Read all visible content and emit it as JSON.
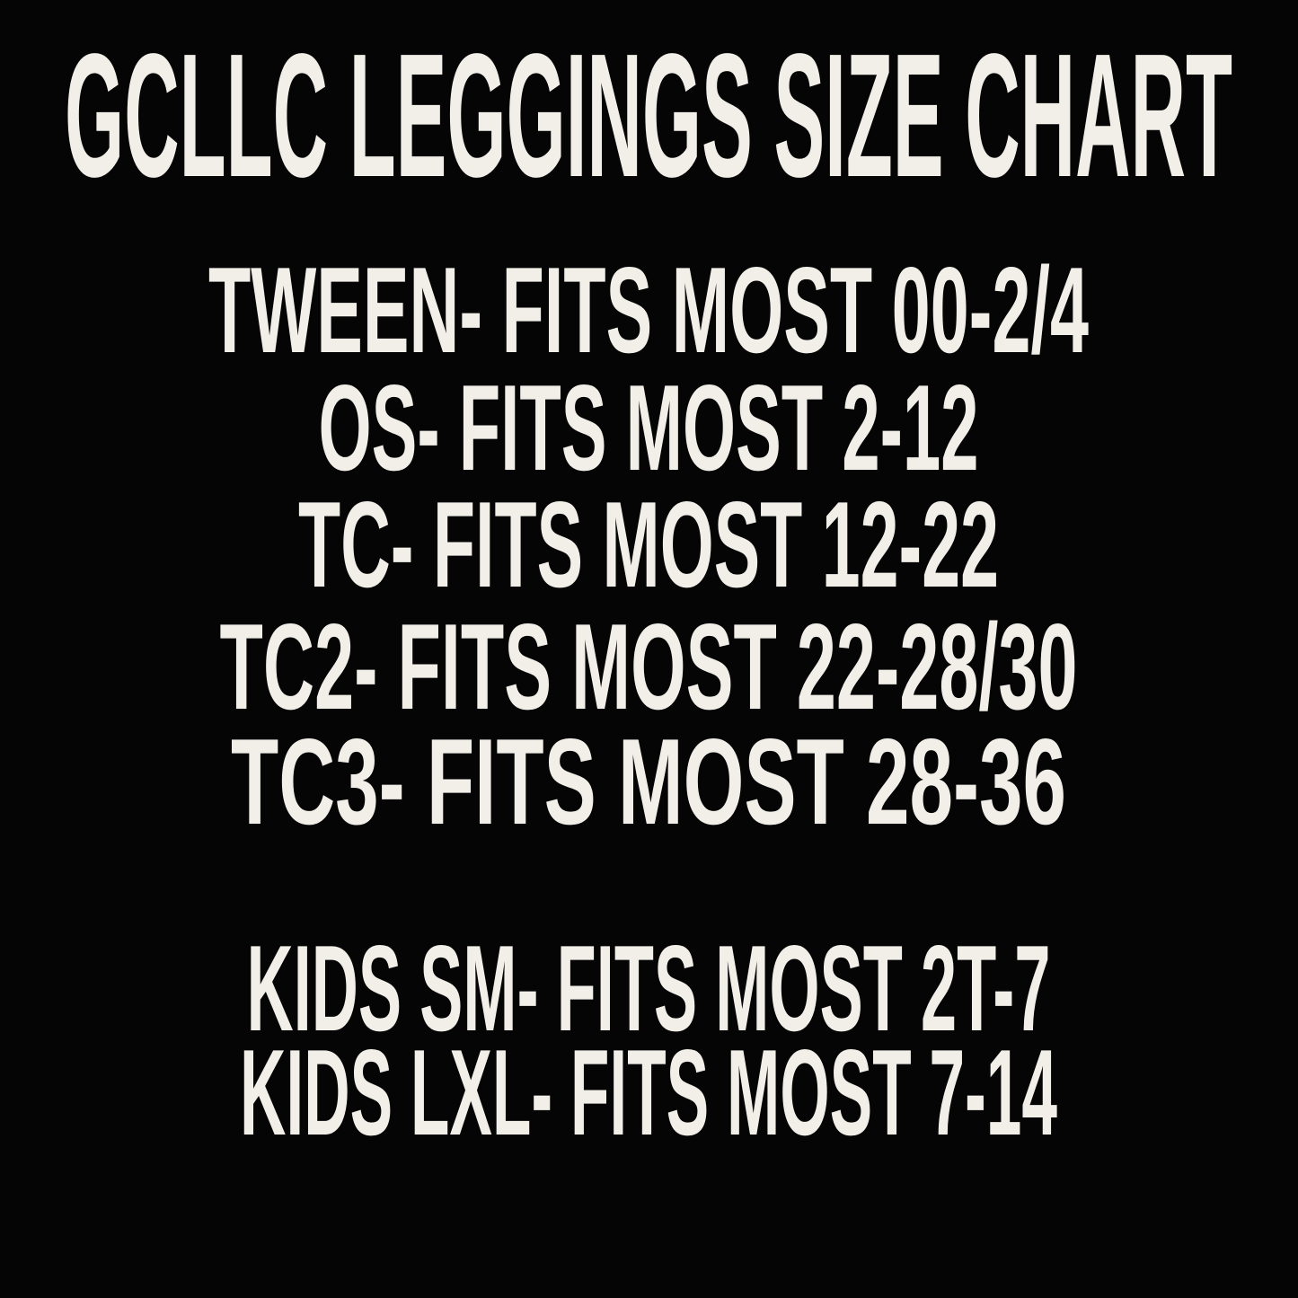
{
  "colors": {
    "background": "#050505",
    "text": "#f2efe9"
  },
  "title": "GCLLC LEGGINGS SIZE CHART",
  "size_chart": {
    "adult_lines": [
      "TWEEN- FITS MOST 00-2/4",
      "OS- FITS MOST 2-12",
      "TC- FITS MOST 12-22",
      "TC2- FITS MOST 22-28/30",
      "TC3- FITS MOST 28-36"
    ],
    "kids_lines": [
      "KIDS SM- FITS MOST 2T-7",
      "KIDS LXL- FITS MOST 7-14"
    ]
  }
}
